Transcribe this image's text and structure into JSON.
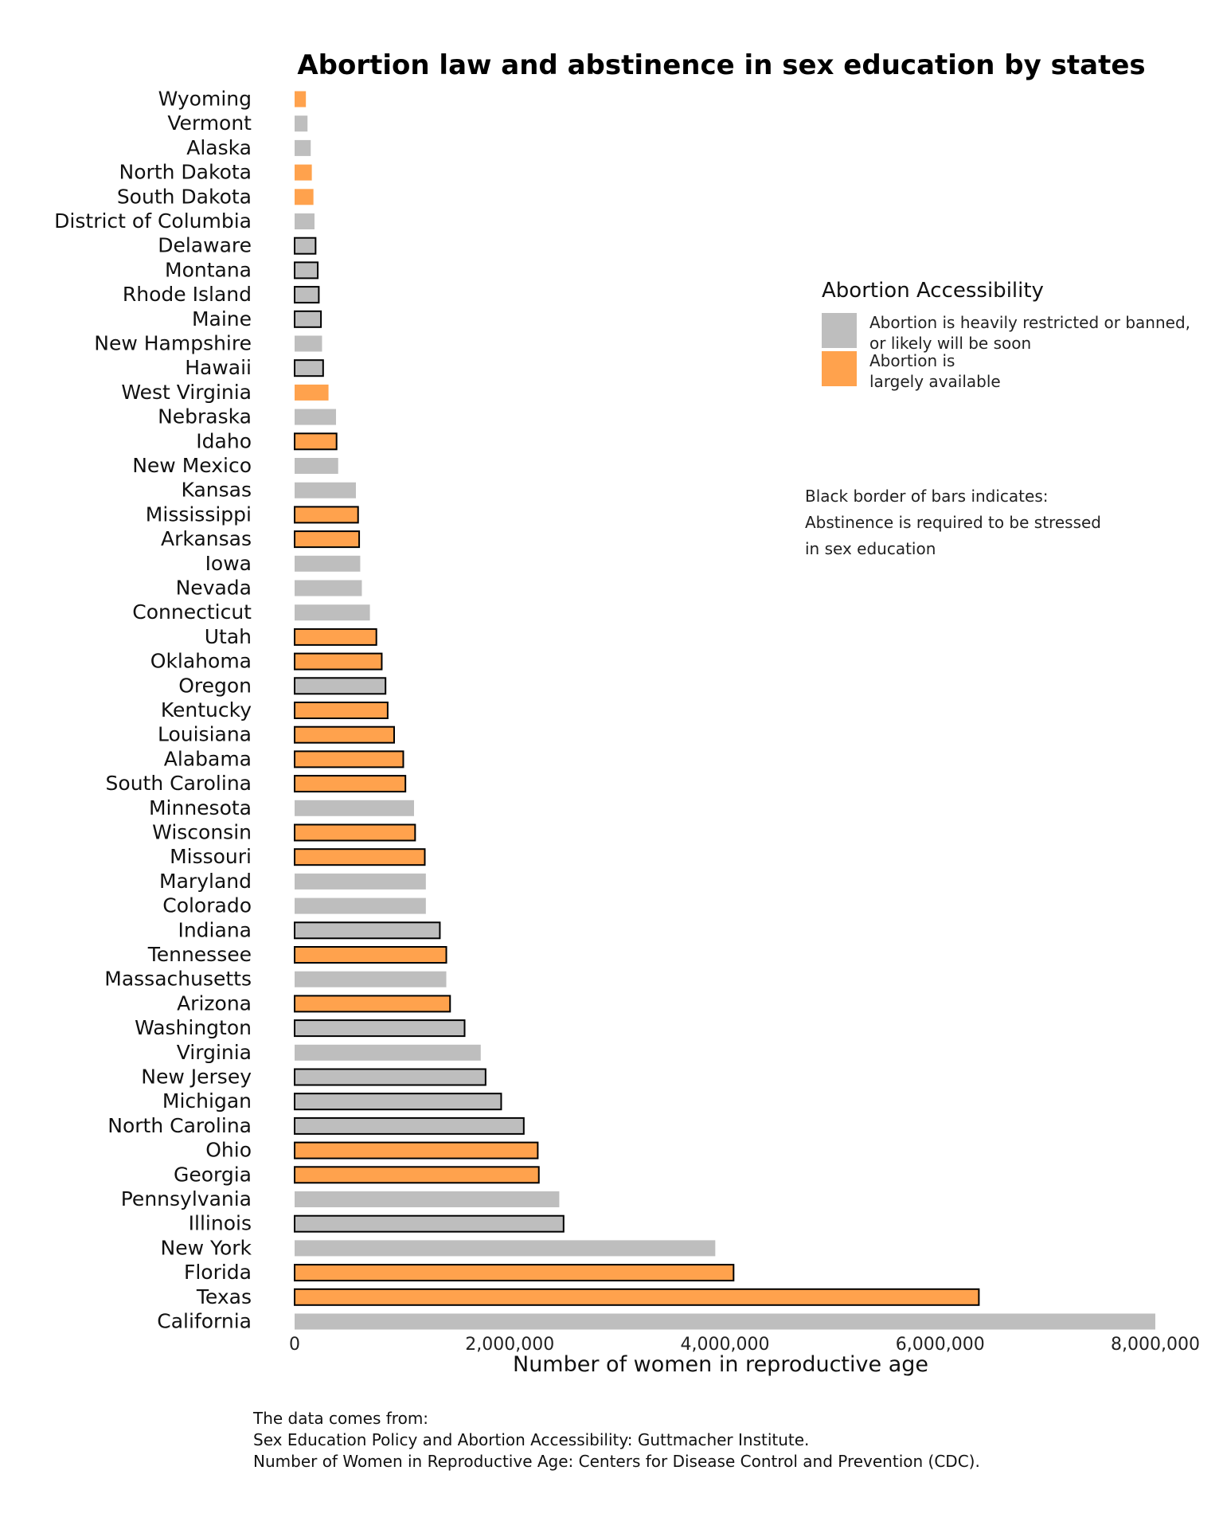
{
  "chart_data": {
    "type": "bar",
    "orientation": "horizontal",
    "title": "Abortion law and abstinence in sex education by states",
    "xlabel": "Number of women in reproductive age",
    "ylabel": "",
    "xlim": [
      0,
      8000000
    ],
    "x_ticks": [
      0,
      2000000,
      4000000,
      6000000,
      8000000
    ],
    "x_tick_labels": [
      "0",
      "2,000,000",
      "4,000,000",
      "6,000,000",
      "8,000,000"
    ],
    "grid": false,
    "colors": {
      "restricted": "#bebebe",
      "available": "#ffa24d",
      "abstinence_border": "#000000"
    },
    "legend": {
      "title": "Abortion Accessibility",
      "placement": "right",
      "items": [
        {
          "key": "restricted",
          "line1": "Abortion is heavily restricted or banned,",
          "line2": "or likely will be soon"
        },
        {
          "key": "available",
          "line1": "Abortion is",
          "line2": "largely available"
        }
      ]
    },
    "note": [
      "Black border of bars indicates:",
      "Abstinence is required to be stressed",
      "in sex education"
    ],
    "bars": [
      {
        "state": "Wyoming",
        "value": 105000,
        "access": "available",
        "abstinence": false
      },
      {
        "state": "Vermont",
        "value": 120000,
        "access": "restricted",
        "abstinence": false
      },
      {
        "state": "Alaska",
        "value": 150000,
        "access": "restricted",
        "abstinence": false
      },
      {
        "state": "North Dakota",
        "value": 160000,
        "access": "available",
        "abstinence": false
      },
      {
        "state": "South Dakota",
        "value": 175000,
        "access": "available",
        "abstinence": false
      },
      {
        "state": "District of Columbia",
        "value": 185000,
        "access": "restricted",
        "abstinence": false
      },
      {
        "state": "Delaware",
        "value": 195000,
        "access": "restricted",
        "abstinence": true
      },
      {
        "state": "Montana",
        "value": 215000,
        "access": "restricted",
        "abstinence": true
      },
      {
        "state": "Rhode Island",
        "value": 225000,
        "access": "restricted",
        "abstinence": true
      },
      {
        "state": "Maine",
        "value": 245000,
        "access": "restricted",
        "abstinence": true
      },
      {
        "state": "New Hampshire",
        "value": 255000,
        "access": "restricted",
        "abstinence": false
      },
      {
        "state": "Hawaii",
        "value": 265000,
        "access": "restricted",
        "abstinence": true
      },
      {
        "state": "West Virginia",
        "value": 315000,
        "access": "available",
        "abstinence": false
      },
      {
        "state": "Nebraska",
        "value": 385000,
        "access": "restricted",
        "abstinence": false
      },
      {
        "state": "Idaho",
        "value": 390000,
        "access": "available",
        "abstinence": true
      },
      {
        "state": "New Mexico",
        "value": 405000,
        "access": "restricted",
        "abstinence": false
      },
      {
        "state": "Kansas",
        "value": 570000,
        "access": "restricted",
        "abstinence": false
      },
      {
        "state": "Mississippi",
        "value": 590000,
        "access": "available",
        "abstinence": true
      },
      {
        "state": "Arkansas",
        "value": 600000,
        "access": "available",
        "abstinence": true
      },
      {
        "state": "Iowa",
        "value": 610000,
        "access": "restricted",
        "abstinence": false
      },
      {
        "state": "Nevada",
        "value": 625000,
        "access": "restricted",
        "abstinence": false
      },
      {
        "state": "Connecticut",
        "value": 700000,
        "access": "restricted",
        "abstinence": false
      },
      {
        "state": "Utah",
        "value": 760000,
        "access": "available",
        "abstinence": true
      },
      {
        "state": "Oklahoma",
        "value": 810000,
        "access": "available",
        "abstinence": true
      },
      {
        "state": "Oregon",
        "value": 845000,
        "access": "restricted",
        "abstinence": true
      },
      {
        "state": "Kentucky",
        "value": 865000,
        "access": "available",
        "abstinence": true
      },
      {
        "state": "Louisiana",
        "value": 925000,
        "access": "available",
        "abstinence": true
      },
      {
        "state": "Alabama",
        "value": 1010000,
        "access": "available",
        "abstinence": true
      },
      {
        "state": "South Carolina",
        "value": 1030000,
        "access": "available",
        "abstinence": true
      },
      {
        "state": "Minnesota",
        "value": 1110000,
        "access": "restricted",
        "abstinence": false
      },
      {
        "state": "Wisconsin",
        "value": 1120000,
        "access": "available",
        "abstinence": true
      },
      {
        "state": "Missouri",
        "value": 1210000,
        "access": "available",
        "abstinence": true
      },
      {
        "state": "Maryland",
        "value": 1220000,
        "access": "restricted",
        "abstinence": false
      },
      {
        "state": "Colorado",
        "value": 1220000,
        "access": "restricted",
        "abstinence": false
      },
      {
        "state": "Indiana",
        "value": 1350000,
        "access": "restricted",
        "abstinence": true
      },
      {
        "state": "Tennessee",
        "value": 1410000,
        "access": "available",
        "abstinence": true
      },
      {
        "state": "Massachusetts",
        "value": 1410000,
        "access": "restricted",
        "abstinence": false
      },
      {
        "state": "Arizona",
        "value": 1445000,
        "access": "available",
        "abstinence": true
      },
      {
        "state": "Washington",
        "value": 1580000,
        "access": "restricted",
        "abstinence": true
      },
      {
        "state": "Virginia",
        "value": 1730000,
        "access": "restricted",
        "abstinence": false
      },
      {
        "state": "New Jersey",
        "value": 1775000,
        "access": "restricted",
        "abstinence": true
      },
      {
        "state": "Michigan",
        "value": 1920000,
        "access": "restricted",
        "abstinence": true
      },
      {
        "state": "North Carolina",
        "value": 2130000,
        "access": "restricted",
        "abstinence": true
      },
      {
        "state": "Ohio",
        "value": 2260000,
        "access": "available",
        "abstinence": true
      },
      {
        "state": "Georgia",
        "value": 2270000,
        "access": "available",
        "abstinence": true
      },
      {
        "state": "Pennsylvania",
        "value": 2460000,
        "access": "restricted",
        "abstinence": false
      },
      {
        "state": "Illinois",
        "value": 2500000,
        "access": "restricted",
        "abstinence": true
      },
      {
        "state": "New York",
        "value": 3910000,
        "access": "restricted",
        "abstinence": false
      },
      {
        "state": "Florida",
        "value": 4080000,
        "access": "available",
        "abstinence": true
      },
      {
        "state": "Texas",
        "value": 6360000,
        "access": "available",
        "abstinence": true
      },
      {
        "state": "California",
        "value": 8000000,
        "access": "restricted",
        "abstinence": false
      }
    ]
  },
  "footer": {
    "line1": "The data comes from:",
    "line2": "Sex Education Policy and Abortion Accessibility: Guttmacher Institute.",
    "line3": "Number of Women in Reproductive Age: Centers for Disease Control and Prevention (CDC)."
  }
}
